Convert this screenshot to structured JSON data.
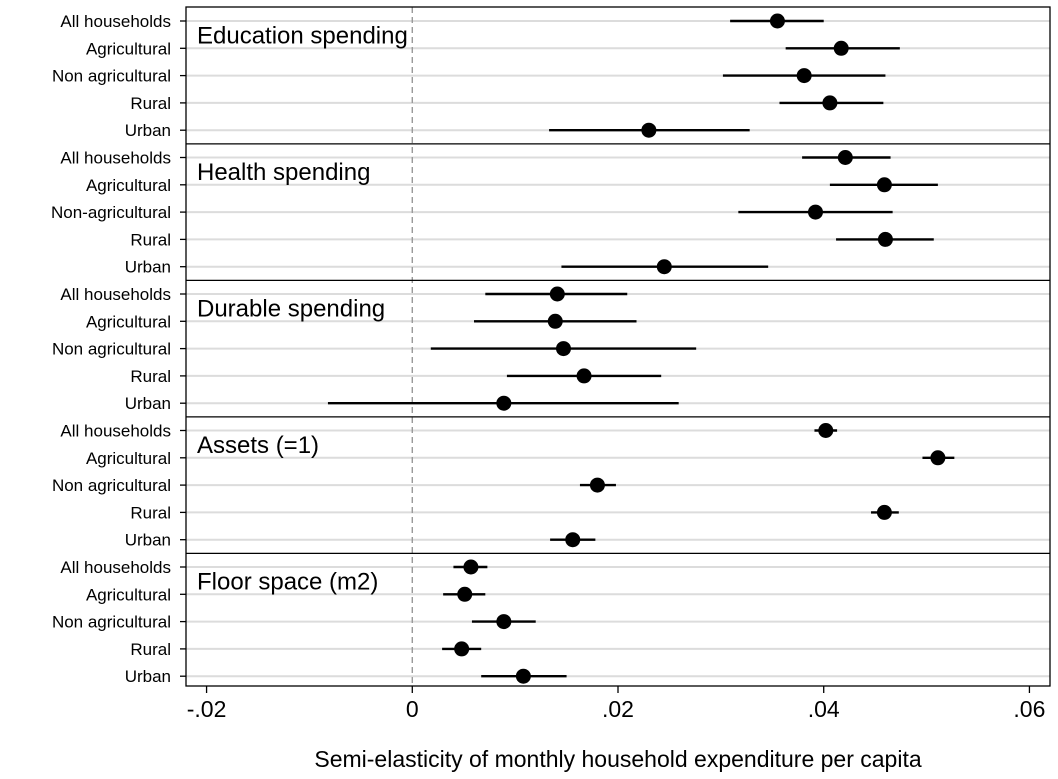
{
  "chart_data": {
    "type": "scatter",
    "subtype": "coefficient-plot-with-confidence-intervals",
    "xlabel": "Semi-elasticity of monthly household expenditure per capita",
    "xlim": [
      -0.022,
      0.062
    ],
    "xticks": [
      -0.02,
      0,
      0.02,
      0.04,
      0.06
    ],
    "xtick_labels": [
      "-.02",
      "0",
      ".02",
      ".04",
      ".06"
    ],
    "reference_line_x": 0,
    "grid": "horizontal",
    "colors": {
      "marker": "#000000",
      "ci_line": "#000000",
      "gridline": "#dcdcdc",
      "reference_line": "#999999",
      "frame": "#000000"
    },
    "panels": [
      {
        "title": "Education spending",
        "categories": [
          "All households",
          "Agricultural",
          "Non agricultural",
          "Rural",
          "Urban"
        ],
        "estimates": [
          0.0355,
          0.0417,
          0.0381,
          0.0406,
          0.023
        ],
        "ci_low": [
          0.0309,
          0.0363,
          0.0302,
          0.0357,
          0.0133
        ],
        "ci_high": [
          0.04,
          0.0474,
          0.046,
          0.0458,
          0.0328
        ]
      },
      {
        "title": "Health spending",
        "categories": [
          "All households",
          "Agricultural",
          "Non-agricultural",
          "Rural",
          "Urban"
        ],
        "estimates": [
          0.0421,
          0.0459,
          0.0392,
          0.046,
          0.0245
        ],
        "ci_low": [
          0.0379,
          0.0406,
          0.0317,
          0.0412,
          0.0145
        ],
        "ci_high": [
          0.0465,
          0.0511,
          0.0467,
          0.0507,
          0.0346
        ]
      },
      {
        "title": "Durable spending",
        "categories": [
          "All households",
          "Agricultural",
          "Non agricultural",
          "Rural",
          "Urban"
        ],
        "estimates": [
          0.0141,
          0.0139,
          0.0147,
          0.0167,
          0.0089
        ],
        "ci_low": [
          0.0071,
          0.006,
          0.0018,
          0.0092,
          -0.0082
        ],
        "ci_high": [
          0.0209,
          0.0218,
          0.0276,
          0.0242,
          0.0259
        ]
      },
      {
        "title": "Assets (=1)",
        "categories": [
          "All households",
          "Agricultural",
          "Non agricultural",
          "Rural",
          "Urban"
        ],
        "estimates": [
          0.0402,
          0.0511,
          0.018,
          0.0459,
          0.0156
        ],
        "ci_low": [
          0.0391,
          0.0496,
          0.0163,
          0.0446,
          0.0134
        ],
        "ci_high": [
          0.0413,
          0.0527,
          0.0198,
          0.0473,
          0.0178
        ]
      },
      {
        "title": "Floor space (m2)",
        "categories": [
          "All households",
          "Agricultural",
          "Non agricultural",
          "Rural",
          "Urban"
        ],
        "estimates": [
          0.0057,
          0.0051,
          0.0089,
          0.0048,
          0.0108
        ],
        "ci_low": [
          0.004,
          0.003,
          0.0058,
          0.0029,
          0.0067
        ],
        "ci_high": [
          0.0073,
          0.0071,
          0.012,
          0.0067,
          0.015
        ]
      }
    ]
  }
}
